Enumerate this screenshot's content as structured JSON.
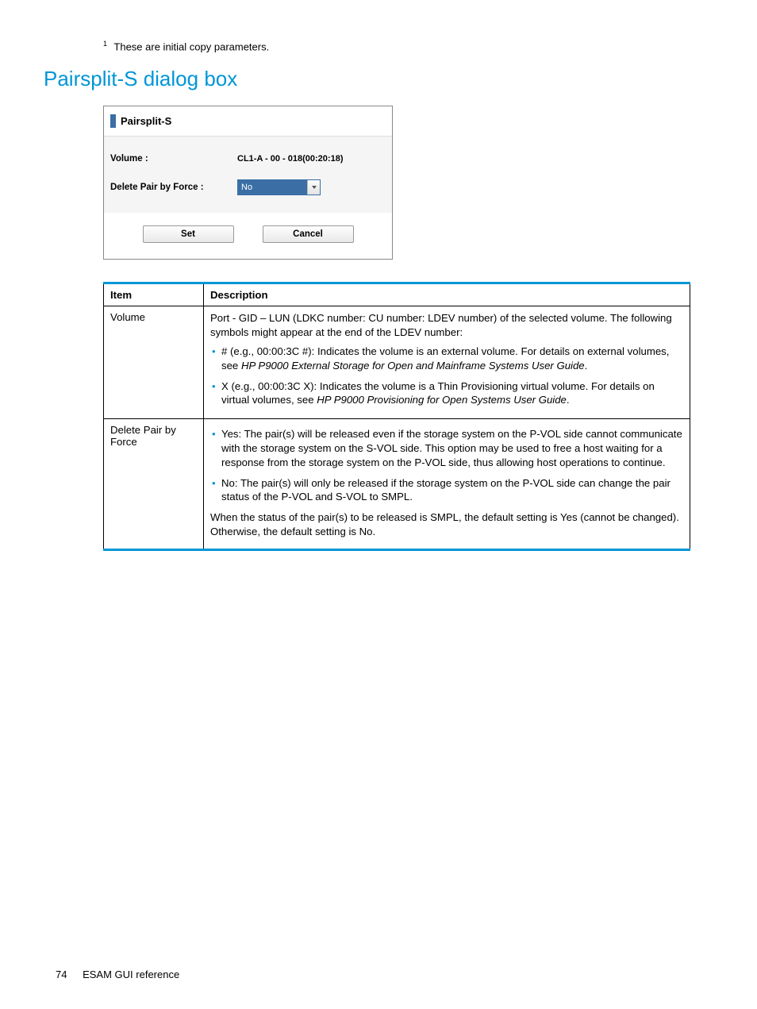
{
  "colors": {
    "heading": "#0096d6",
    "accent": "#0096d6",
    "table_border_top": "#0096d6",
    "table_border_bottom": "#0096d6",
    "bullet": "#0096d6",
    "text": "#000000"
  },
  "footnote": {
    "marker": "1",
    "text": "These are initial copy parameters."
  },
  "section_title": "Pairsplit-S dialog box",
  "dialog": {
    "title": "Pairsplit-S",
    "rows": {
      "volume_label": "Volume :",
      "volume_value": "CL1-A - 00 - 018(00:20:18)",
      "delete_label": "Delete Pair by Force :",
      "delete_value": "No"
    },
    "buttons": {
      "set": "Set",
      "cancel": "Cancel"
    }
  },
  "table": {
    "headers": {
      "item": "Item",
      "description": "Description"
    },
    "rows": [
      {
        "item": "Volume",
        "desc_intro": "Port - GID – LUN (LDKC number: CU number: LDEV number) of the selected volume. The following symbols might appear at the end of the LDEV number:",
        "bullets": [
          {
            "text": "# (e.g., 00:00:3C #): Indicates the volume is an external volume. For details on external volumes, see ",
            "ref": "HP P9000 External Storage for Open and Mainframe Systems User Guide",
            "suffix": "."
          },
          {
            "text": "X (e.g., 00:00:3C X): Indicates the volume is a Thin Provisioning virtual volume. For details on virtual volumes, see ",
            "ref": "HP P9000 Provisioning for Open Systems User Guide",
            "suffix": "."
          }
        ]
      },
      {
        "item": "Delete Pair by Force",
        "bullets2": [
          "Yes: The pair(s) will be released even if the storage system on the P-VOL side cannot communicate with the storage system on the S-VOL side. This option may be used to free a host waiting for a response from the storage system on the P-VOL side, thus allowing host operations to continue.",
          "No: The pair(s) will only be released if the storage system on the P-VOL side can change the pair status of the P-VOL and S-VOL to SMPL."
        ],
        "desc_outro": "When the status of the pair(s) to be released is SMPL, the default setting is Yes (cannot be changed). Otherwise, the default setting is No."
      }
    ]
  },
  "footer": {
    "page": "74",
    "title": "ESAM GUI reference"
  }
}
